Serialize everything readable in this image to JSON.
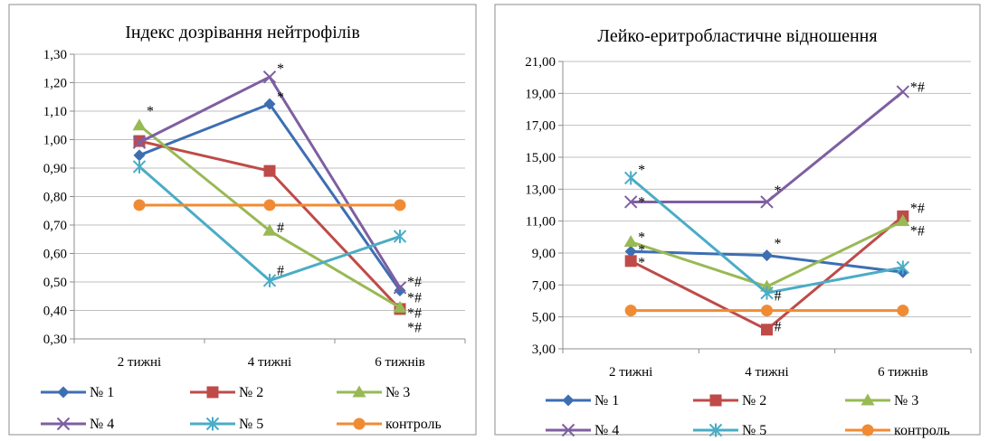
{
  "chart_data": [
    {
      "type": "line",
      "title": "Індекс дозрівання нейтрофілів",
      "categories": [
        "2 тижні",
        "4 тижні",
        "6 тижнів"
      ],
      "ylim": [
        0.3,
        1.3
      ],
      "ystep": 0.1,
      "y_tick_labels": [
        "0,30",
        "0,40",
        "0,50",
        "0,60",
        "0,70",
        "0,80",
        "0,90",
        "1,00",
        "1,10",
        "1,20",
        "1,30"
      ],
      "grid": true,
      "legend": "bottom",
      "series": [
        {
          "name": "№ 1",
          "values": [
            0.945,
            1.125,
            0.47
          ],
          "color": "#3D6EB2",
          "marker": "diamond"
        },
        {
          "name": "№ 2",
          "values": [
            0.995,
            0.89,
            0.405
          ],
          "color": "#BE4B48",
          "marker": "square"
        },
        {
          "name": "№ 3",
          "values": [
            1.05,
            0.68,
            0.41
          ],
          "color": "#98B954",
          "marker": "triangle"
        },
        {
          "name": "№ 4",
          "values": [
            0.99,
            1.22,
            0.48
          ],
          "color": "#7E5FA1",
          "marker": "x"
        },
        {
          "name": "№ 5",
          "values": [
            0.905,
            0.505,
            0.66
          ],
          "color": "#4BACC6",
          "marker": "star"
        },
        {
          "name": "контроль",
          "values": [
            0.77,
            0.77,
            0.77
          ],
          "color": "#F08B34",
          "marker": "circle"
        }
      ],
      "annotations": [
        {
          "text": "*",
          "x": 0,
          "y": 1.1
        },
        {
          "text": "*",
          "x": 1,
          "y": 1.25
        },
        {
          "text": "*",
          "x": 1,
          "y": 1.15
        },
        {
          "text": "#",
          "x": 1,
          "y": 0.69
        },
        {
          "text": "#",
          "x": 1,
          "y": 0.54
        },
        {
          "text": "*#",
          "x": 2,
          "y": 0.5
        },
        {
          "text": "*#",
          "x": 2,
          "y": 0.445
        },
        {
          "text": "*#",
          "x": 2,
          "y": 0.39
        },
        {
          "text": "*#",
          "x": 2,
          "y": 0.34
        }
      ]
    },
    {
      "type": "line",
      "title": "Лейко-еритробластичне відношення",
      "categories": [
        "2 тижні",
        "4 тижні",
        "6 тижнів"
      ],
      "ylim": [
        3.0,
        21.0
      ],
      "ystep": 2.0,
      "y_tick_labels": [
        "3,00",
        "5,00",
        "7,00",
        "9,00",
        "11,00",
        "13,00",
        "15,00",
        "17,00",
        "19,00",
        "21,00"
      ],
      "grid": true,
      "legend": "bottom",
      "series": [
        {
          "name": "№ 1",
          "values": [
            9.1,
            8.85,
            7.8
          ],
          "color": "#3D6EB2",
          "marker": "diamond"
        },
        {
          "name": "№ 2",
          "values": [
            8.5,
            4.2,
            11.3
          ],
          "color": "#BE4B48",
          "marker": "square"
        },
        {
          "name": "№ 3",
          "values": [
            9.7,
            6.9,
            11.0
          ],
          "color": "#98B954",
          "marker": "triangle"
        },
        {
          "name": "№ 4",
          "values": [
            12.2,
            12.2,
            19.1
          ],
          "color": "#7E5FA1",
          "marker": "x"
        },
        {
          "name": "№ 5",
          "values": [
            13.7,
            6.5,
            8.1
          ],
          "color": "#4BACC6",
          "marker": "star"
        },
        {
          "name": "контроль",
          "values": [
            5.4,
            5.4,
            5.4
          ],
          "color": "#F08B34",
          "marker": "circle"
        }
      ],
      "annotations": [
        {
          "text": "*",
          "x": 0,
          "y": 14.2
        },
        {
          "text": "*",
          "x": 0,
          "y": 12.2
        },
        {
          "text": "*",
          "x": 0,
          "y": 10.0
        },
        {
          "text": "*",
          "x": 0,
          "y": 9.2
        },
        {
          "text": "*",
          "x": 0,
          "y": 8.4
        },
        {
          "text": "*",
          "x": 1,
          "y": 12.9
        },
        {
          "text": "*",
          "x": 1,
          "y": 9.6
        },
        {
          "text": "#",
          "x": 1,
          "y": 6.3
        },
        {
          "text": "#",
          "x": 1,
          "y": 4.4
        },
        {
          "text": "*#",
          "x": 2,
          "y": 19.4
        },
        {
          "text": "*#",
          "x": 2,
          "y": 11.8
        },
        {
          "text": "*#",
          "x": 2,
          "y": 10.4
        }
      ]
    }
  ]
}
